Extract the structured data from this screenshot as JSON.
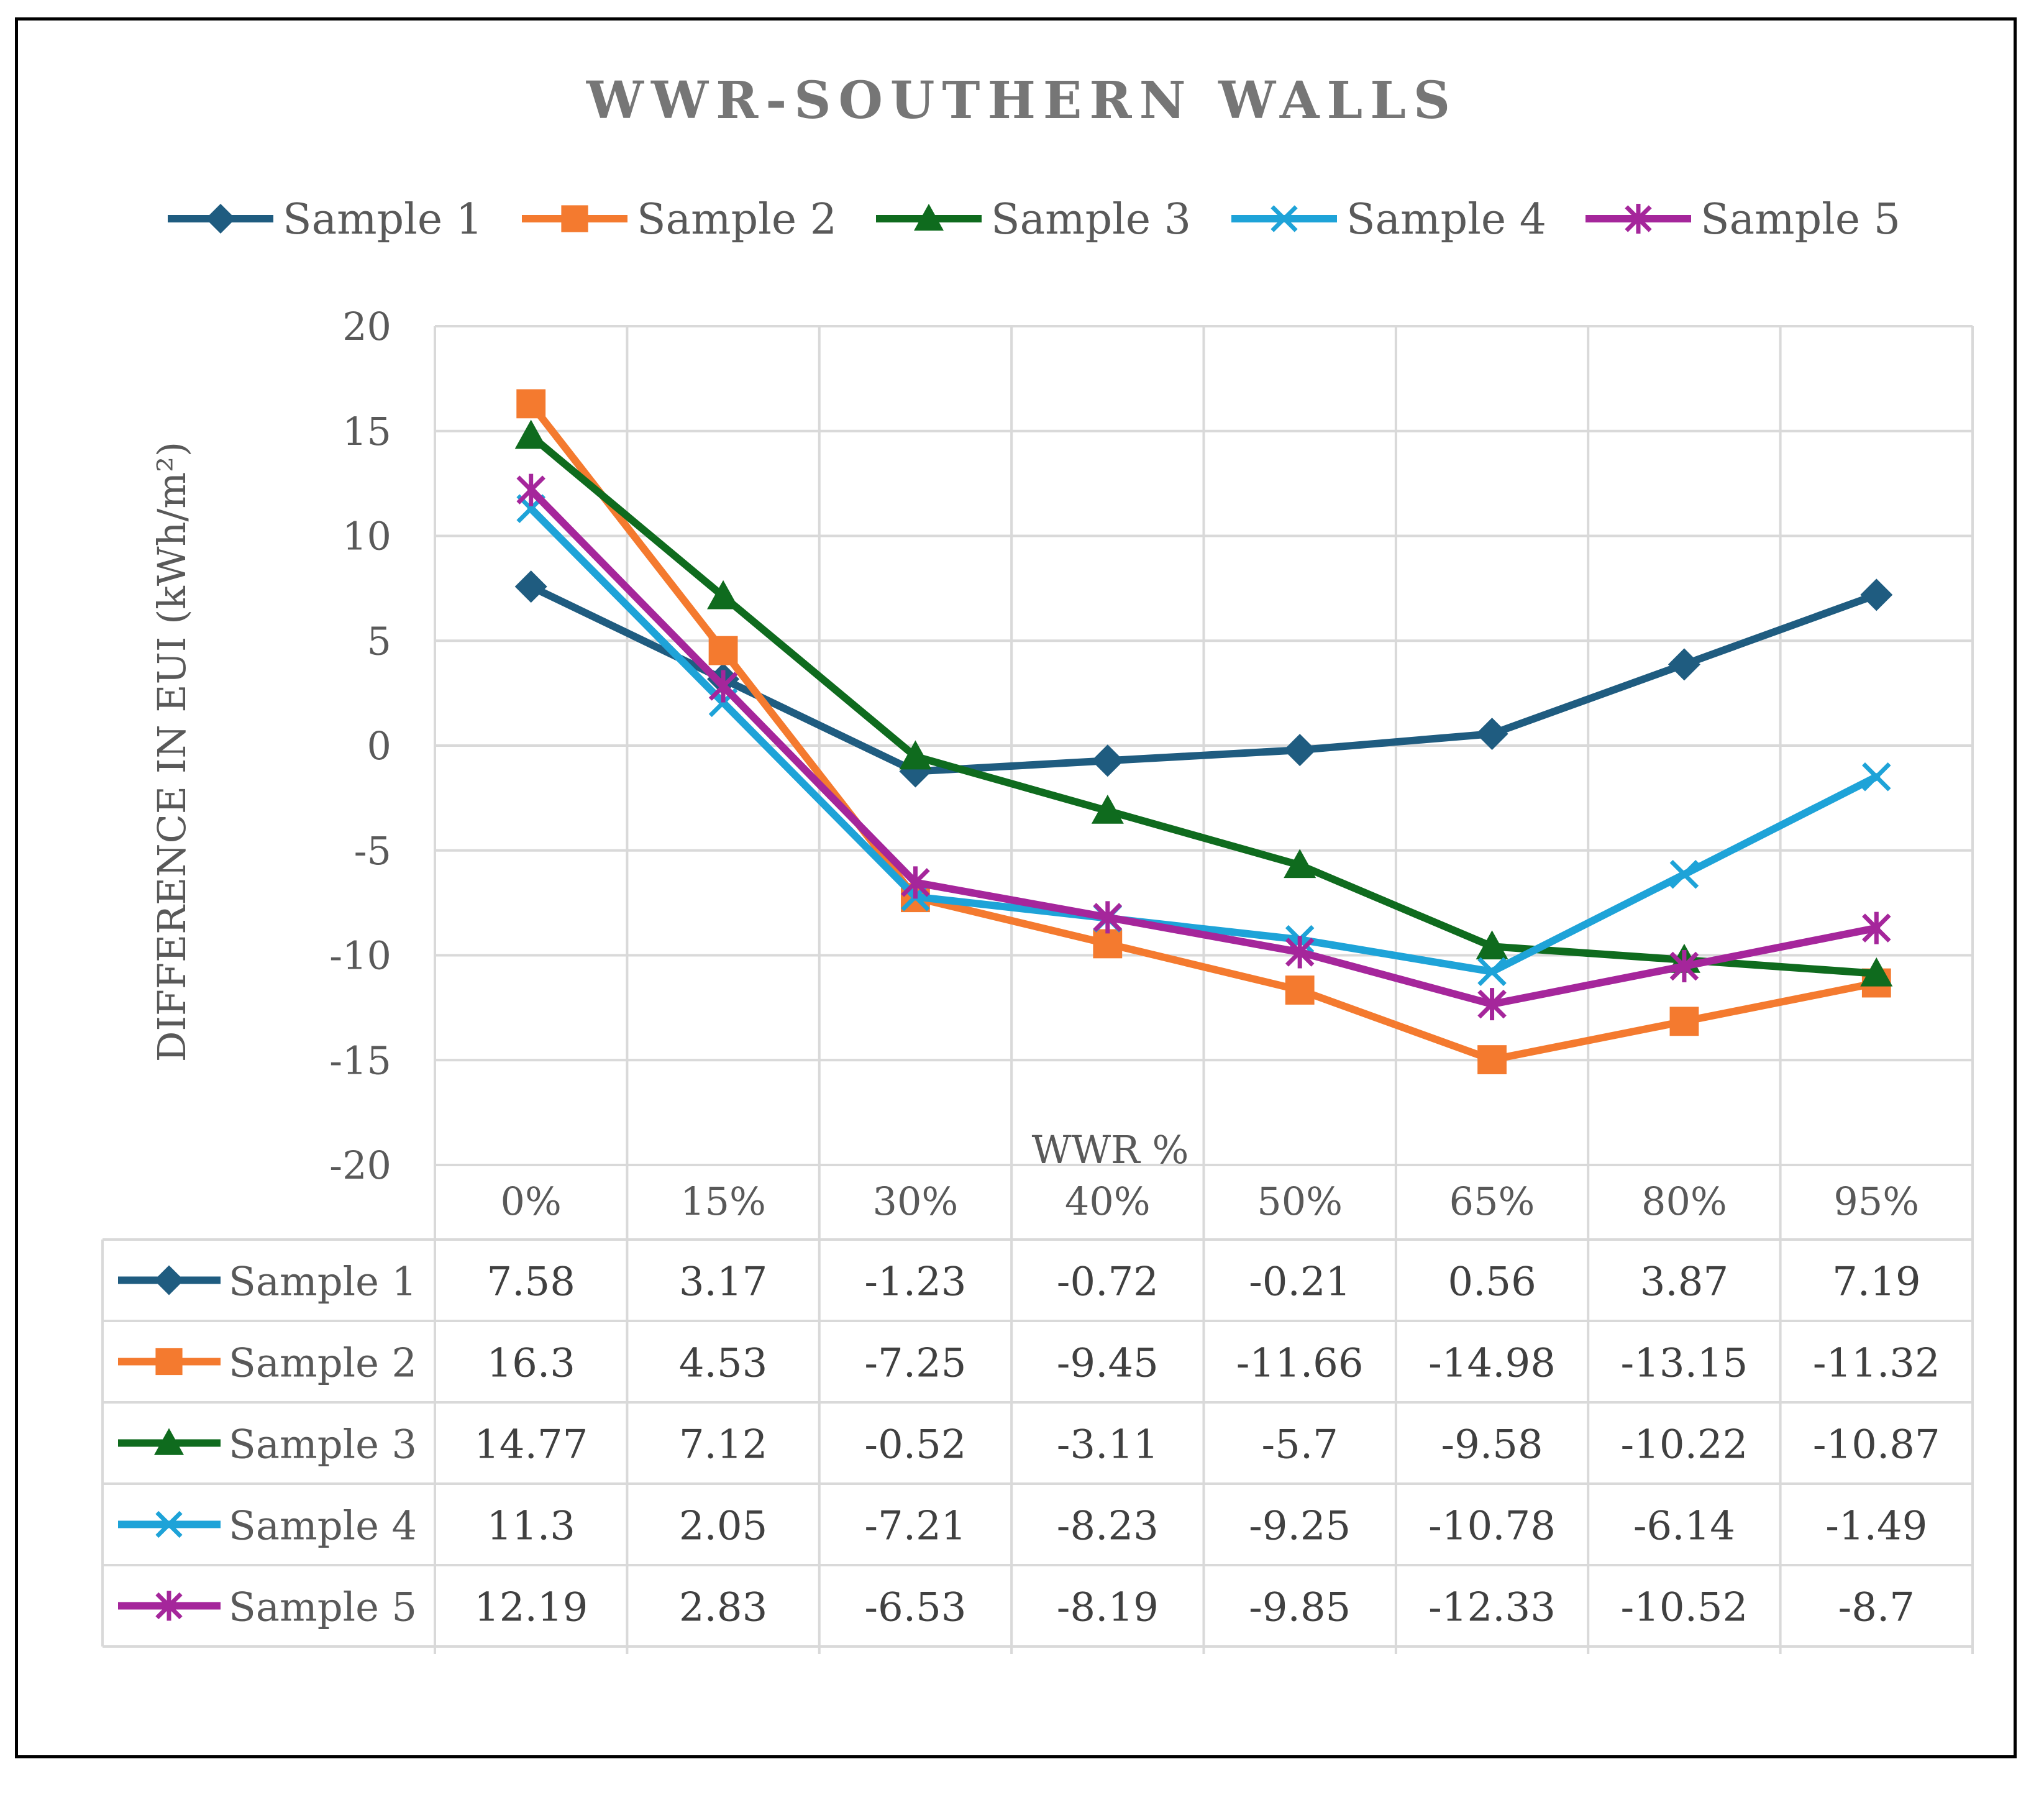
{
  "chart_data": {
    "type": "line",
    "title": "WWR-SOUTHERN WALLS",
    "xlabel": "WWR %",
    "ylabel": "DIFFERENCE IN EUI  (kWh/m²)",
    "ylim": [
      -20,
      20
    ],
    "ytick_step": 5,
    "yticks": [
      "20",
      "15",
      "10",
      "5",
      "0",
      "-5",
      "-10",
      "-15",
      "-20"
    ],
    "grid": true,
    "legend_position": "top",
    "categories": [
      "0%",
      "15%",
      "30%",
      "40%",
      "50%",
      "65%",
      "80%",
      "95%"
    ],
    "series": [
      {
        "name": "Sample 1",
        "color": "#1f5c80",
        "marker": "diamond",
        "values": [
          7.58,
          3.17,
          -1.23,
          -0.72,
          -0.21,
          0.56,
          3.87,
          7.19
        ],
        "labels": [
          "7.58",
          "3.17",
          "-1.23",
          "-0.72",
          "-0.21",
          "0.56",
          "3.87",
          "7.19"
        ]
      },
      {
        "name": "Sample 2",
        "color": "#f47a2f",
        "marker": "square",
        "values": [
          16.3,
          4.53,
          -7.25,
          -9.45,
          -11.66,
          -14.98,
          -13.15,
          -11.32
        ],
        "labels": [
          "16.3",
          "4.53",
          "-7.25",
          "-9.45",
          "-11.66",
          "-14.98",
          "-13.15",
          "-11.32"
        ]
      },
      {
        "name": "Sample 3",
        "color": "#0f6b1e",
        "marker": "triangle",
        "values": [
          14.77,
          7.12,
          -0.52,
          -3.11,
          -5.7,
          -9.58,
          -10.22,
          -10.87
        ],
        "labels": [
          "14.77",
          "7.12",
          "-0.52",
          "-3.11",
          "-5.7",
          "-9.58",
          "-10.22",
          "-10.87"
        ]
      },
      {
        "name": "Sample 4",
        "color": "#1ea3d8",
        "marker": "x",
        "values": [
          11.3,
          2.05,
          -7.21,
          -8.23,
          -9.25,
          -10.78,
          -6.14,
          -1.49
        ],
        "labels": [
          "11.3",
          "2.05",
          "-7.21",
          "-8.23",
          "-9.25",
          "-10.78",
          "-6.14",
          "-1.49"
        ]
      },
      {
        "name": "Sample 5",
        "color": "#a5269b",
        "marker": "star",
        "values": [
          12.19,
          2.83,
          -6.53,
          -8.19,
          -9.85,
          -12.33,
          -10.52,
          -8.7
        ],
        "labels": [
          "12.19",
          "2.83",
          "-6.53",
          "-8.19",
          "-9.85",
          "-12.33",
          "-10.52",
          "-8.7"
        ]
      }
    ]
  }
}
